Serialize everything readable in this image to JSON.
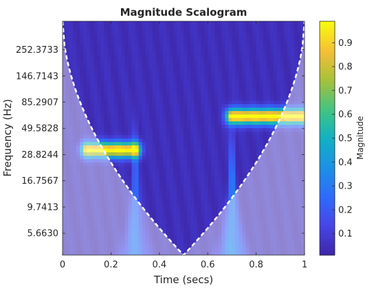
{
  "chart_data": {
    "type": "heatmap",
    "title": "Magnitude Scalogram",
    "xlabel": "Time (secs)",
    "ylabel": "Frequency (Hz)",
    "colorbar_label": "Magnitude",
    "colormap": "parula",
    "xlim": [
      0,
      1
    ],
    "x_ticks": [
      0,
      0.2,
      0.4,
      0.6,
      0.8,
      1
    ],
    "x_tick_labels": [
      "0",
      "0.2",
      "0.4",
      "0.6",
      "0.8",
      "1"
    ],
    "y_scale": "log",
    "ylim_hz": [
      3.6,
      455
    ],
    "y_ticks": [
      5.663,
      9.7413,
      16.7567,
      28.8244,
      49.5828,
      85.2907,
      146.7143,
      252.3733
    ],
    "y_tick_labels": [
      "5.6630",
      "9.7413",
      "16.7567",
      "28.8244",
      "49.5828",
      "85.2907",
      "146.7143",
      "252.3733"
    ],
    "clim": [
      0.01,
      0.99
    ],
    "colorbar_ticks": [
      0.1,
      0.2,
      0.3,
      0.4,
      0.5,
      0.6,
      0.7,
      0.8,
      0.9
    ],
    "colorbar_tick_labels": [
      "0.1",
      "0.2",
      "0.3",
      "0.4",
      "0.5",
      "0.6",
      "0.7",
      "0.8",
      "0.9"
    ],
    "components": [
      {
        "time_start": 0.1,
        "time_end": 0.3,
        "frequency_hz": 32,
        "magnitude": 0.95
      },
      {
        "time_start": 0.7,
        "time_end": 1.0,
        "frequency_hz": 64,
        "magnitude": 0.99
      }
    ],
    "transients": [
      {
        "time": 0.3,
        "magnitude": 0.25
      },
      {
        "time": 0.7,
        "magnitude": 0.3
      }
    ],
    "cone_of_influence": {
      "style": "white dashed",
      "min_time": 0.5,
      "min_frequency_hz": 3.6,
      "edge_time_at_top": 0.0
    }
  }
}
